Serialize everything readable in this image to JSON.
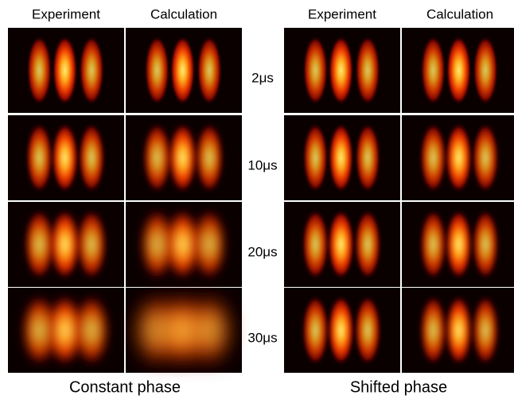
{
  "panels": [
    {
      "caption": "Constant phase",
      "columns": [
        "Experiment",
        "Calculation"
      ]
    },
    {
      "caption": "Shifted phase",
      "columns": [
        "Experiment",
        "Calculation"
      ]
    }
  ],
  "rows": [
    "2μs",
    "10μs",
    "20μs",
    "30μs"
  ]
}
